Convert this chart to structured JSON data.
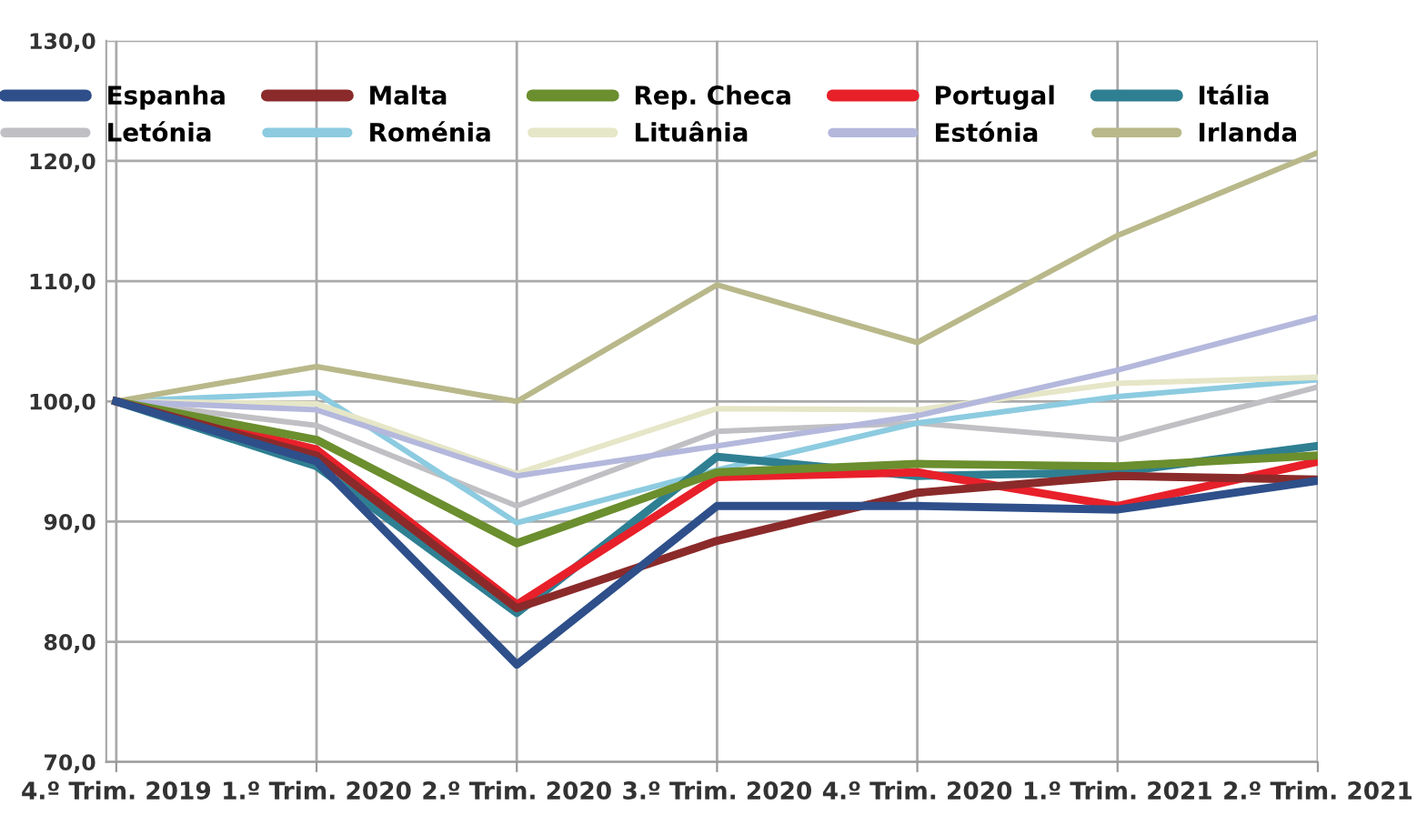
{
  "chart_data": {
    "type": "line",
    "categories": [
      "4.º Trim. 2019",
      "1.º Trim. 2020",
      "2.º Trim. 2020",
      "3.º Trim. 2020",
      "4.º Trim. 2020",
      "1.º Trim. 2021",
      "2.º Trim. 2021"
    ],
    "series": [
      {
        "name": "Espanha",
        "color": "#2e4f8a",
        "values": [
          100,
          95,
          78.1,
          91.3,
          91.3,
          91,
          93.4
        ]
      },
      {
        "name": "Malta",
        "color": "#8b2a2a",
        "values": [
          100,
          95.5,
          82.8,
          88.4,
          92.4,
          93.8,
          93.5
        ]
      },
      {
        "name": "Rep. Checa",
        "color": "#6b8e2e",
        "values": [
          100,
          96.8,
          88.2,
          94.1,
          94.8,
          94.6,
          95.5
        ]
      },
      {
        "name": "Portugal",
        "color": "#e8202a",
        "values": [
          100,
          96,
          83.1,
          93.7,
          94.1,
          91.3,
          95
        ]
      },
      {
        "name": "Itália",
        "color": "#2f7f92",
        "values": [
          100,
          94.6,
          82.4,
          95.4,
          93.8,
          94.1,
          96.3
        ]
      },
      {
        "name": "Letónia",
        "color": "#c0c0c4",
        "values": [
          100,
          98,
          91.3,
          97.5,
          98.2,
          96.8,
          101.2
        ]
      },
      {
        "name": "Roménia",
        "color": "#8ccbe0",
        "values": [
          100,
          100.7,
          89.9,
          94.3,
          98.2,
          100.4,
          101.8
        ]
      },
      {
        "name": "Lituânia",
        "color": "#e6e6c8",
        "values": [
          100,
          99.8,
          94,
          99.4,
          99.3,
          101.5,
          102
        ]
      },
      {
        "name": "Estónia",
        "color": "#b4b8dc",
        "values": [
          100,
          99.3,
          93.8,
          96.3,
          98.8,
          102.6,
          107
        ]
      },
      {
        "name": "Irlanda",
        "color": "#b8b88a",
        "values": [
          100,
          102.9,
          100,
          109.7,
          104.9,
          113.8,
          120.7
        ]
      }
    ],
    "ylim": [
      70,
      130
    ],
    "yticks": [
      {
        "value": 70,
        "label": "70,0"
      },
      {
        "value": 80,
        "label": "80,0"
      },
      {
        "value": 90,
        "label": "90,0"
      },
      {
        "value": 100,
        "label": "100,0"
      },
      {
        "value": 110,
        "label": "110,0"
      },
      {
        "value": 120,
        "label": "120,0"
      },
      {
        "value": 130,
        "label": "130,0"
      }
    ],
    "grid": true,
    "legend": "top",
    "marker": "none",
    "line_style": "solid"
  }
}
